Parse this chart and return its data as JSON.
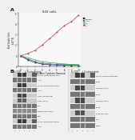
{
  "bg_color": "#f0f0f0",
  "panel_A": {
    "title": "S32 cells",
    "xlabel": "Days After Cytokine Removal",
    "ylabel": "Total Viable Cells\n(x10^6)",
    "x": [
      0,
      1,
      2,
      3,
      4,
      5,
      6,
      7,
      8
    ],
    "lines": {
      "Parental": {
        "y": [
          1.0,
          0.6,
          0.35,
          0.2,
          0.15,
          0.12,
          0.1,
          0.09,
          0.08
        ],
        "color": "#222222",
        "marker": "s"
      },
      "JAK1": {
        "y": [
          1.0,
          0.7,
          0.45,
          0.3,
          0.22,
          0.18,
          0.16,
          0.14,
          0.12
        ],
        "color": "#4466bb",
        "marker": "s"
      },
      "IKK": {
        "y": [
          1.0,
          0.8,
          0.6,
          0.45,
          0.35,
          0.28,
          0.22,
          0.18,
          0.15
        ],
        "color": "#44aa44",
        "marker": "^"
      },
      "IL": {
        "y": [
          1.0,
          1.2,
          1.5,
          2.0,
          2.6,
          3.2,
          3.8,
          4.2,
          4.8
        ],
        "color": "#cc3333",
        "marker": "o"
      }
    },
    "ylim": [
      0,
      5.0
    ],
    "xlim": [
      -0.3,
      8.3
    ]
  },
  "panel_B_left": {
    "header1": "IL-3 ER",
    "header2": "IL-3-independent",
    "n_cols": 5,
    "rows": [
      {
        "label": "p-JAK1 (Tyr1022/Tyr1023)",
        "bands": [
          0,
          0.85,
          0.85,
          0,
          0.7
        ],
        "group": "phospho"
      },
      {
        "label": "JAK1",
        "bands": [
          0.6,
          0.6,
          0.6,
          0.6,
          0.6
        ],
        "group": "total"
      },
      {
        "label": "pJAK2 (Tyr1007/Tyr1008)",
        "bands": [
          0,
          0.85,
          0.85,
          0,
          0
        ],
        "group": "phospho"
      },
      {
        "label": "JAK2",
        "bands": [
          0.6,
          0.6,
          0.6,
          0.6,
          0.6
        ],
        "group": "total"
      },
      {
        "label": "pShc (Y239/Y240)",
        "bands": [
          0,
          0.8,
          0.8,
          0,
          0
        ],
        "group": "phospho"
      },
      {
        "label": "pShc (Y317)",
        "bands": [
          0,
          0.7,
          0.7,
          0,
          0
        ],
        "group": "phospho"
      },
      {
        "label": "Shc",
        "bands": [
          0.6,
          0.6,
          0.6,
          0.6,
          0.6
        ],
        "group": "total"
      },
      {
        "label": "pERK (Y202/Y204)",
        "bands": [
          0.5,
          0.5,
          0.5,
          0.5,
          0.5
        ],
        "group": "phospho"
      },
      {
        "label": "ERK",
        "bands": [
          0.6,
          0.6,
          0.6,
          0.6,
          0.6
        ],
        "group": "total"
      },
      {
        "label": "pJAK1 (Tyr1022/Tyr1023)",
        "bands": [
          0,
          0.85,
          0.85,
          0,
          0.7
        ],
        "group": "phospho"
      },
      {
        "label": "JAK1",
        "bands": [
          0.6,
          0.6,
          0.6,
          0.6,
          0.6
        ],
        "group": "total"
      }
    ]
  },
  "panel_B_right": {
    "header1": "IL-3 ER",
    "header2": "IL-3-independent",
    "n_cols": 5,
    "rows": [
      {
        "label": "p-JAK2 (Tyr1007/Tyr1008)",
        "bands": [
          0,
          0.85,
          0.85,
          0,
          0.7
        ],
        "group": "phospho"
      },
      {
        "label": "pJAK2",
        "bands": [
          0.6,
          0.6,
          0.6,
          0.6,
          0.6
        ],
        "group": "total"
      },
      {
        "label": "pSTAT3 (Y705)",
        "bands": [
          0,
          0.8,
          0.8,
          0,
          0
        ],
        "group": "phospho"
      },
      {
        "label": "STAT3",
        "bands": [
          0.6,
          0.6,
          0.6,
          0.6,
          0.6
        ],
        "group": "total"
      },
      {
        "label": "pSTAT5 (Y694)",
        "bands": [
          0,
          0.8,
          0.8,
          0,
          0
        ],
        "group": "phospho"
      },
      {
        "label": "STAT5",
        "bands": [
          0.6,
          0.6,
          0.6,
          0.6,
          0.6
        ],
        "group": "total"
      },
      {
        "label": "pAKT (Ser473)",
        "bands": [
          0,
          0.75,
          0.75,
          0,
          0
        ],
        "group": "phospho"
      },
      {
        "label": "AKT",
        "bands": [
          0.6,
          0.6,
          0.6,
          0.6,
          0.6
        ],
        "group": "total"
      },
      {
        "label": "HSP90",
        "bands": [
          0.6,
          0.6,
          0.6,
          0.6,
          0.6
        ],
        "group": "total"
      }
    ]
  }
}
